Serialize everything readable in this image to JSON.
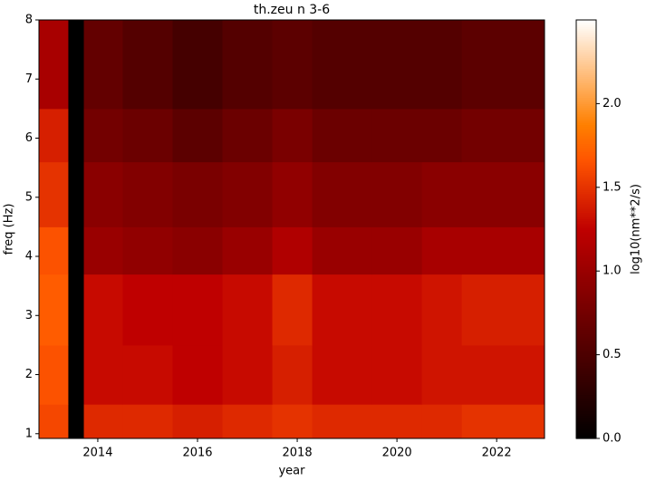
{
  "chart_data": {
    "type": "heatmap",
    "title": "th.zeu n 3-6",
    "x_label": "year",
    "y_label": "freq (Hz)",
    "colorbar_label": "log10(nm**2/s)",
    "colormap": "gist_heat",
    "xlim": [
      2012.82,
      2022.96
    ],
    "xticks": [
      2014,
      2016,
      2018,
      2020,
      2022
    ],
    "ylim": [
      0.92,
      8
    ],
    "yticks": [
      1,
      2,
      3,
      4,
      5,
      6,
      7,
      8
    ],
    "clim": [
      0,
      2.5
    ],
    "cticks": [
      {
        "value": 0,
        "label": "0.0"
      },
      {
        "value": 0.5,
        "label": "0.5"
      },
      {
        "value": 1,
        "label": "1.0"
      },
      {
        "value": 1.5,
        "label": "1.5"
      },
      {
        "value": 2,
        "label": "2.0"
      }
    ],
    "x_edges": [
      2012.82,
      2013.4,
      2013.72,
      2014.5,
      2015.5,
      2016.5,
      2017.5,
      2018.3,
      2019.5,
      2020.5,
      2021.3,
      2022.96
    ],
    "y_edges": [
      0.92,
      1.5,
      2.5,
      3.7,
      4.5,
      5.6,
      6.5,
      8
    ],
    "z": [
      [
        1.6,
        null,
        1.45,
        1.45,
        1.4,
        1.45,
        1.5,
        1.45,
        1.45,
        1.45,
        1.5
      ],
      [
        1.65,
        null,
        1.3,
        1.3,
        1.25,
        1.3,
        1.4,
        1.3,
        1.3,
        1.35,
        1.35
      ],
      [
        1.7,
        null,
        1.3,
        1.25,
        1.25,
        1.3,
        1.45,
        1.3,
        1.3,
        1.35,
        1.4
      ],
      [
        1.65,
        null,
        1.0,
        0.95,
        0.9,
        1.0,
        1.15,
        1.0,
        1.0,
        1.1,
        1.1
      ],
      [
        1.5,
        null,
        0.9,
        0.85,
        0.8,
        0.85,
        0.95,
        0.85,
        0.85,
        0.9,
        0.9
      ],
      [
        1.4,
        null,
        0.75,
        0.7,
        0.6,
        0.7,
        0.8,
        0.7,
        0.7,
        0.7,
        0.75
      ],
      [
        1.1,
        null,
        0.65,
        0.55,
        0.45,
        0.55,
        0.6,
        0.55,
        0.55,
        0.55,
        0.6
      ]
    ]
  }
}
